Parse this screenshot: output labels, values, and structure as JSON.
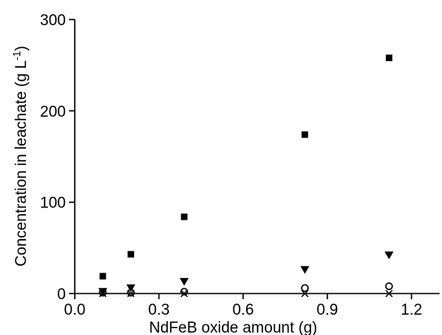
{
  "chart_data": {
    "type": "scatter",
    "title": "",
    "xlabel": "NdFeB oxide amount (g)",
    "ylabel_main": "Concentration in leachate (g L",
    "ylabel_sup": "-1",
    "ylabel_close": ")",
    "xlim": [
      0.0,
      1.3
    ],
    "ylim": [
      0,
      300
    ],
    "xticks": [
      0.0,
      0.3,
      0.6,
      0.9,
      1.2
    ],
    "xtick_labels": [
      "0.0",
      "0.3",
      "0.6",
      "0.9",
      "1.2"
    ],
    "yticks": [
      0,
      100,
      200,
      300
    ],
    "ytick_labels": [
      "0",
      "100",
      "200",
      "300"
    ],
    "grid": false,
    "legend": "none",
    "series": [
      {
        "marker": "square",
        "x": [
          0.1,
          0.2,
          0.39,
          0.82,
          1.12
        ],
        "y": [
          19,
          43,
          84,
          174,
          258
        ]
      },
      {
        "marker": "triangle-down",
        "x": [
          0.1,
          0.2,
          0.39,
          0.82,
          1.12
        ],
        "y": [
          2,
          6,
          13,
          26,
          42
        ]
      },
      {
        "marker": "circle-open",
        "x": [
          0.1,
          0.2,
          0.39,
          0.82,
          1.12
        ],
        "y": [
          1,
          1,
          2,
          6,
          8
        ]
      },
      {
        "marker": "cross",
        "x": [
          0.1,
          0.2,
          0.39,
          0.82,
          1.12
        ],
        "y": [
          0,
          0,
          0,
          0,
          0
        ]
      }
    ]
  }
}
